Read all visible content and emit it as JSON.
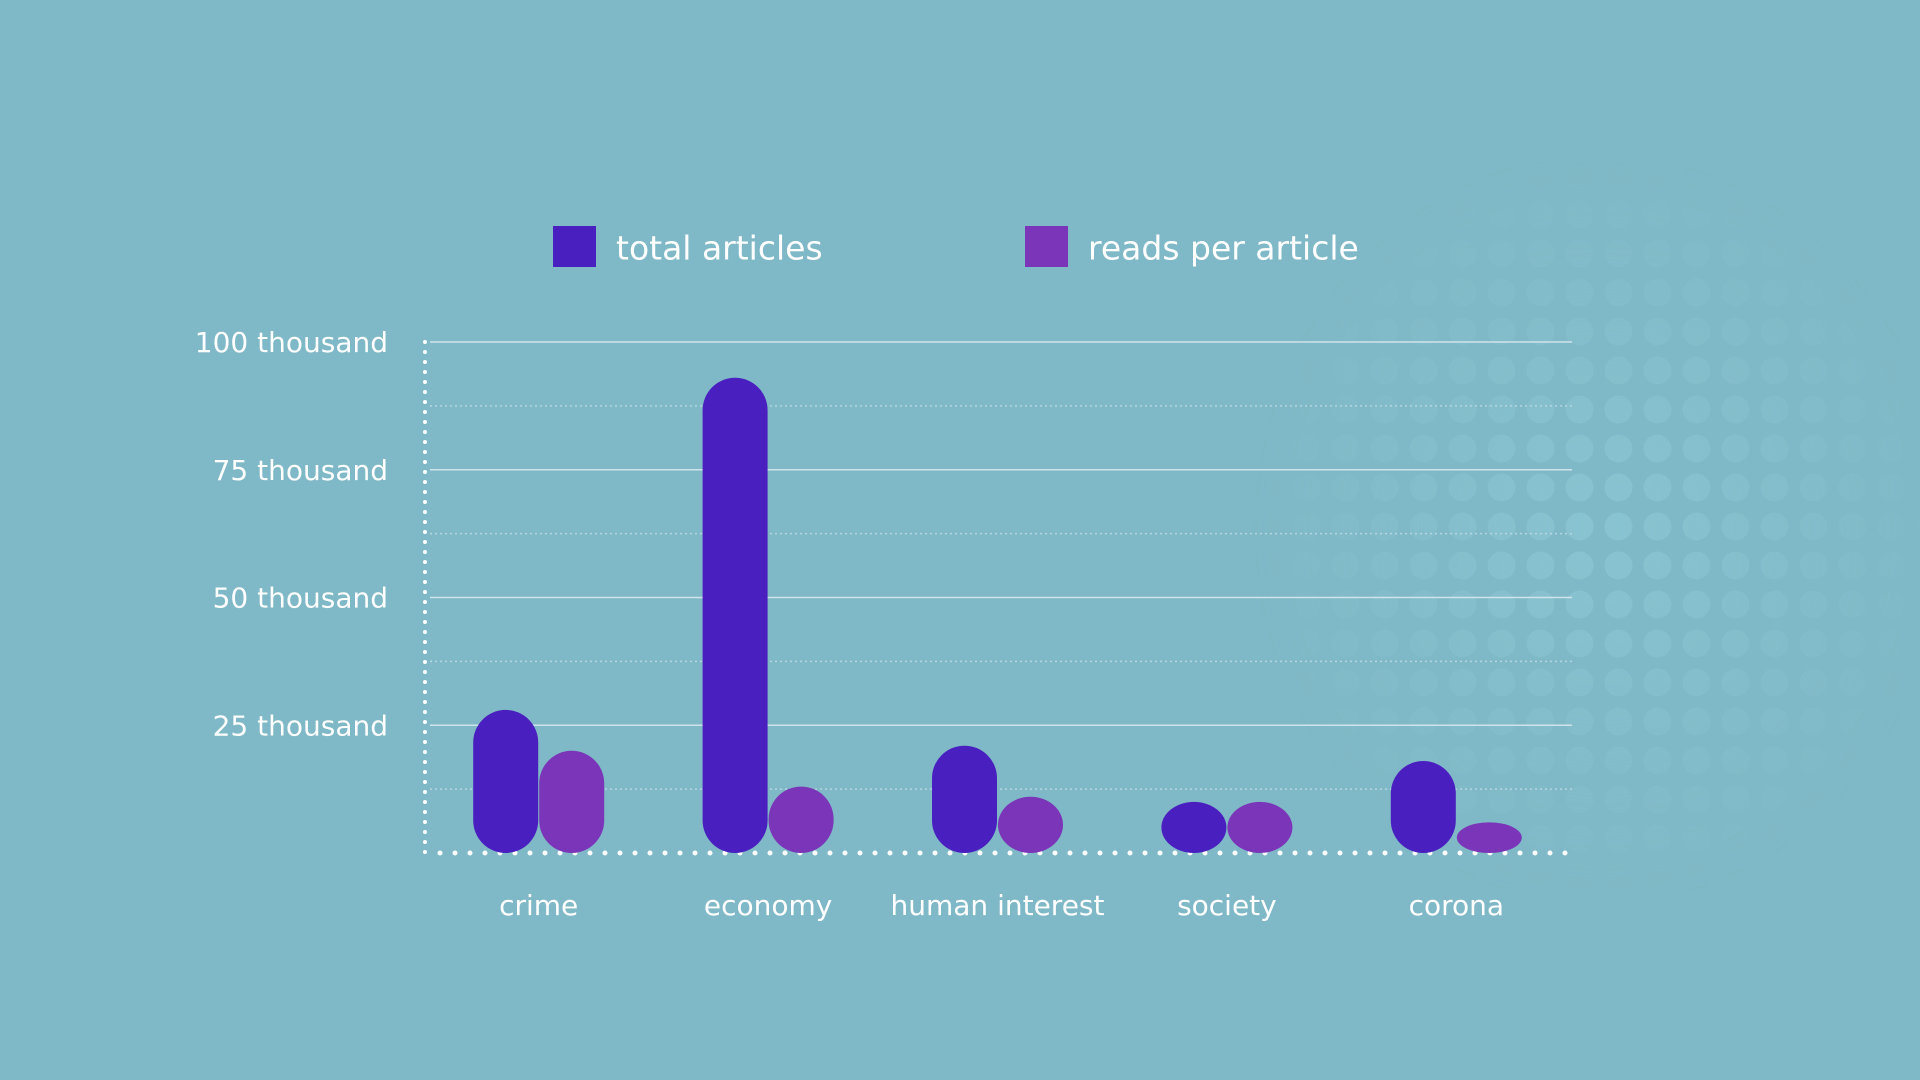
{
  "chart_data": {
    "type": "bar",
    "categories": [
      "crime",
      "economy",
      "human interest",
      "society",
      "corona"
    ],
    "series": [
      {
        "name": "total articles",
        "color": "#4a1fc0",
        "values": [
          28000,
          93000,
          21000,
          10000,
          18000
        ]
      },
      {
        "name": "reads per article",
        "color": "#7b35b8",
        "values": [
          20000,
          13000,
          11000,
          10000,
          6000
        ]
      }
    ],
    "ylim": [
      0,
      100000
    ],
    "yticks": [
      {
        "value": 25000,
        "label": "25 thousand"
      },
      {
        "value": 50000,
        "label": "50 thousand"
      },
      {
        "value": 75000,
        "label": "75 thousand"
      },
      {
        "value": 100000,
        "label": "100 thousand"
      }
    ],
    "minor_yticks": [
      12500,
      37500,
      62500,
      87500
    ],
    "grid": true
  }
}
